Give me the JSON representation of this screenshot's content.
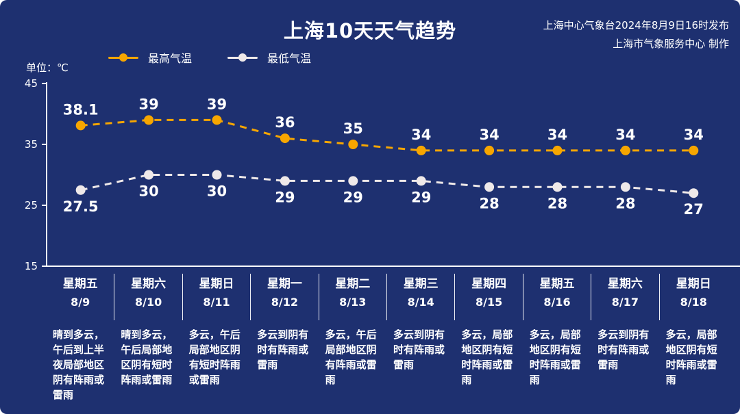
{
  "header": {
    "title": "上海10天天气趋势",
    "source_line1": "上海中心气象台2024年8月9日16时发布",
    "source_line2": "上海市气象服务中心 制作"
  },
  "unit_label": "单位：℃",
  "colors": {
    "background": "#1E3070",
    "high_series": "#F7A600",
    "low_series": "#EFE9E9",
    "axis": "#FFFFFF",
    "value_text": "#FFFFFF"
  },
  "legend": [
    {
      "label": "最高气温",
      "color": "#F7A600"
    },
    {
      "label": "最低气温",
      "color": "#EFE9E9"
    }
  ],
  "chart_data": {
    "type": "line",
    "title": "上海10天天气趋势",
    "x": [
      "8/9",
      "8/10",
      "8/11",
      "8/12",
      "8/13",
      "8/14",
      "8/15",
      "8/16",
      "8/17",
      "8/18"
    ],
    "series": [
      {
        "name": "最高气温",
        "color": "#F7A600",
        "values": [
          38.1,
          39,
          39,
          36,
          35,
          34,
          34,
          34,
          34,
          34
        ]
      },
      {
        "name": "最低气温",
        "color": "#EFE9E9",
        "values": [
          27.5,
          30,
          30,
          29,
          29,
          29,
          28,
          28,
          28,
          27
        ]
      }
    ],
    "ylim": [
      15,
      45
    ],
    "yticks": [
      45,
      35,
      25,
      15
    ],
    "ylabel": "℃",
    "grid": false,
    "line_style": "dashed",
    "legend_position": "top"
  },
  "columns": [
    {
      "day": "星期五",
      "date": "8/9",
      "desc": "晴到多云，午后到上半夜局部地区阴有阵雨或雷雨"
    },
    {
      "day": "星期六",
      "date": "8/10",
      "desc": "晴到多云，午后局部地区阴有短时阵雨或雷雨"
    },
    {
      "day": "星期日",
      "date": "8/11",
      "desc": "多云，午后局部地区阴有短时阵雨或雷雨"
    },
    {
      "day": "星期一",
      "date": "8/12",
      "desc": "多云到阴有时有阵雨或雷雨"
    },
    {
      "day": "星期二",
      "date": "8/13",
      "desc": "多云，午后局部地区阴有阵雨或雷雨"
    },
    {
      "day": "星期三",
      "date": "8/14",
      "desc": "多云到阴有时有阵雨或雷雨"
    },
    {
      "day": "星期四",
      "date": "8/15",
      "desc": "多云，局部地区阴有短时阵雨或雷雨"
    },
    {
      "day": "星期五",
      "date": "8/16",
      "desc": "多云，局部地区阴有短时阵雨或雷雨"
    },
    {
      "day": "星期六",
      "date": "8/17",
      "desc": "多云到阴有时有阵雨或雷雨"
    },
    {
      "day": "星期日",
      "date": "8/18",
      "desc": "多云，局部地区阴有短时阵雨或雷雨"
    }
  ]
}
